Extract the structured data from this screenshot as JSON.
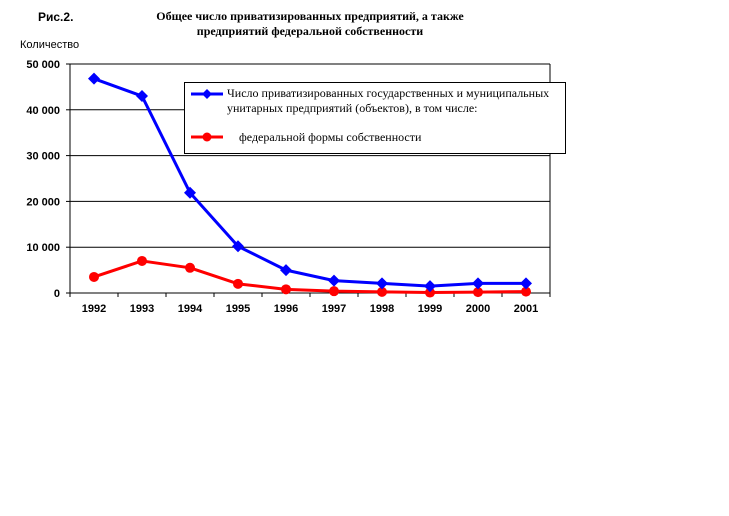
{
  "figure_label": "Рис.2.",
  "chart_data": {
    "type": "line",
    "title": "Общее число приватизированных предприятий, а также предприятий федеральной собственности",
    "title_lines": [
      "Общее число приватизированных предприятий, а также",
      "предприятий федеральной собственности"
    ],
    "xlabel": "",
    "ylabel": "Количество",
    "categories": [
      "1992",
      "1993",
      "1994",
      "1995",
      "1996",
      "1997",
      "1998",
      "1999",
      "2000",
      "2001"
    ],
    "y_ticks": [
      "0",
      "10 000",
      "20 000",
      "30 000",
      "40 000",
      "50 000"
    ],
    "ylim": [
      0,
      50000
    ],
    "grid": true,
    "legend_position": "top-right",
    "series": [
      {
        "name": "Число приватизированных государственных и муниципальных унитарных предприятий (объектов), в том числе:",
        "color": "#0000ff",
        "marker": "diamond",
        "values": [
          46800,
          43000,
          21900,
          10200,
          5000,
          2700,
          2100,
          1500,
          2100,
          2100
        ]
      },
      {
        "name": "федеральной формы собственности",
        "color": "#ff0000",
        "marker": "circle",
        "values": [
          3500,
          7000,
          5500,
          2000,
          800,
          400,
          250,
          100,
          200,
          300
        ]
      }
    ]
  }
}
